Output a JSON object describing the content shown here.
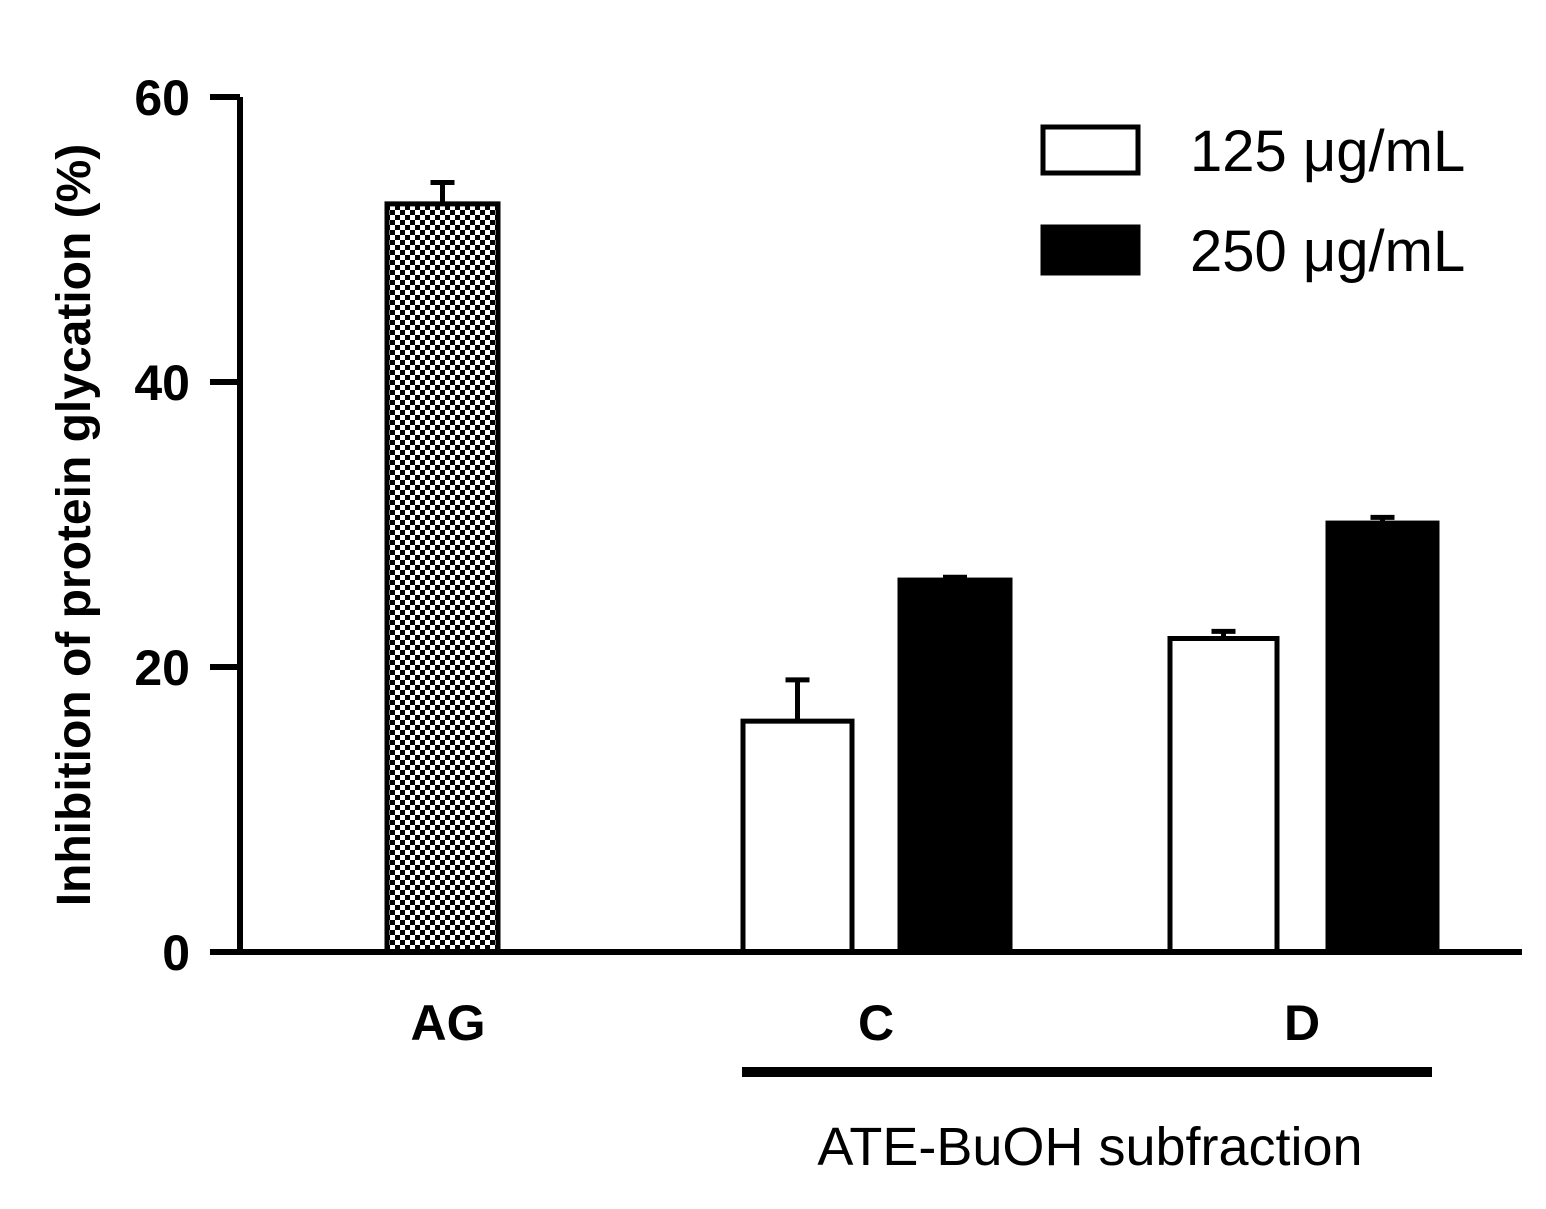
{
  "chart_data": {
    "type": "bar",
    "title": "",
    "ylabel": "Inhibition of protein glycation (%)",
    "xlabel": "",
    "ylim": [
      0,
      60
    ],
    "yticks": [
      0,
      20,
      40,
      60
    ],
    "categories": [
      "AG",
      "C",
      "D"
    ],
    "group_label": "ATE-BuOH subfraction",
    "grouped_categories": [
      "C",
      "D"
    ],
    "legend_position": "top-right",
    "grid": false,
    "series": [
      {
        "name": "",
        "pattern": "checkered",
        "category_values": {
          "AG": 52.5
        },
        "category_errors": {
          "AG": 1.5
        }
      },
      {
        "name": "125 μg/mL",
        "fill": "#ffffff",
        "category_values": {
          "C": 16.2,
          "D": 22.0
        },
        "category_errors": {
          "C": 2.9,
          "D": 0.5
        }
      },
      {
        "name": "250 μg/mL",
        "fill": "#000000",
        "category_values": {
          "C": 26.1,
          "D": 30.1
        },
        "category_errors": {
          "C": 0.2,
          "D": 0.4
        }
      }
    ],
    "legend": [
      {
        "label": "125 μg/mL",
        "fill": "#ffffff"
      },
      {
        "label": "250 μg/mL",
        "fill": "#000000"
      }
    ]
  }
}
